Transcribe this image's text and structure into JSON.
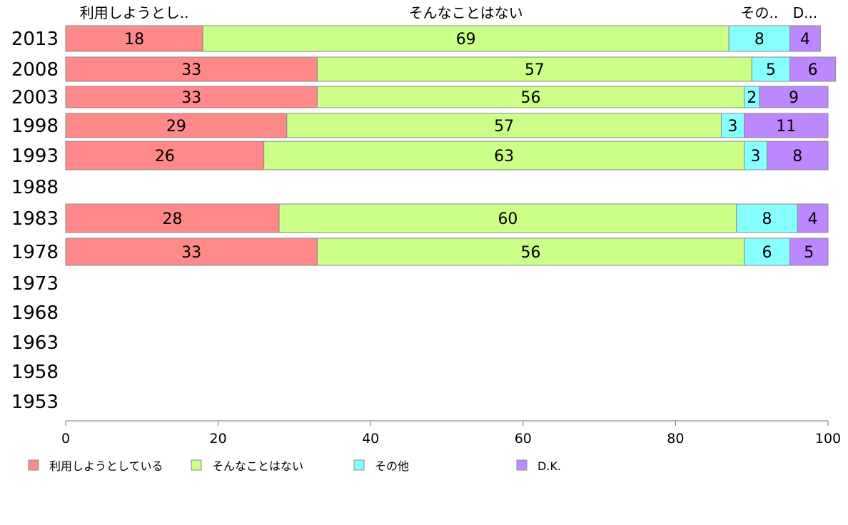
{
  "chart_data": {
    "type": "bar",
    "orientation": "horizontal",
    "stacked": true,
    "categories": [
      "2013",
      "2008",
      "2003",
      "1998",
      "1993",
      "1988",
      "1983",
      "1978",
      "1973",
      "1968",
      "1963",
      "1958",
      "1953"
    ],
    "series": [
      {
        "name": "利用しようとしている",
        "top_label": "利用しようとし..",
        "color": "#ff8888",
        "values": [
          18,
          33,
          33,
          29,
          26,
          null,
          28,
          33,
          null,
          null,
          null,
          null,
          null
        ]
      },
      {
        "name": "そんなことはない",
        "top_label": "そんなことはない",
        "color": "#ccff88",
        "values": [
          69,
          57,
          56,
          57,
          63,
          null,
          60,
          56,
          null,
          null,
          null,
          null,
          null
        ]
      },
      {
        "name": "その他",
        "top_label": "その..",
        "color": "#88ffff",
        "values": [
          8,
          5,
          2,
          3,
          3,
          null,
          8,
          6,
          null,
          null,
          null,
          null,
          null
        ]
      },
      {
        "name": "D.K.",
        "top_label": "D...",
        "color": "#bb88ff",
        "values": [
          4,
          6,
          9,
          11,
          8,
          null,
          4,
          5,
          null,
          null,
          null,
          null,
          null
        ]
      }
    ],
    "xlim": [
      0,
      100
    ],
    "xticks": [
      "0",
      "20",
      "40",
      "60",
      "80",
      "100"
    ],
    "legend_position": "bottom"
  }
}
